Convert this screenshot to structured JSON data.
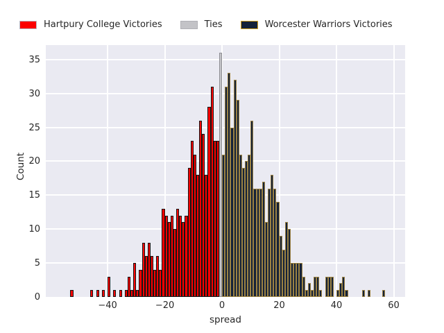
{
  "legend": {
    "items": [
      {
        "label": "Hartpury College Victories",
        "color": "#fb0000",
        "border": "#b9b9c4"
      },
      {
        "label": "Ties",
        "color": "#c3c3c7",
        "border": "#b0b0b6"
      },
      {
        "label": "Worcester Warriors Victories",
        "color": "#152238",
        "border": "#d9a421"
      }
    ]
  },
  "axes": {
    "ylabel": "Count",
    "xlabel": "spread",
    "x_ticks": [
      {
        "value": -40,
        "label": "−40"
      },
      {
        "value": -20,
        "label": "−20"
      },
      {
        "value": 0,
        "label": "0"
      },
      {
        "value": 20,
        "label": "20"
      },
      {
        "value": 40,
        "label": "40"
      },
      {
        "value": 60,
        "label": "60"
      }
    ],
    "y_ticks": [
      {
        "value": 0,
        "label": "0"
      },
      {
        "value": 5,
        "label": "5"
      },
      {
        "value": 10,
        "label": "10"
      },
      {
        "value": 15,
        "label": "15"
      },
      {
        "value": 20,
        "label": "20"
      },
      {
        "value": 25,
        "label": "25"
      },
      {
        "value": 30,
        "label": "30"
      },
      {
        "value": 35,
        "label": "35"
      }
    ]
  },
  "chart_data": {
    "type": "bar",
    "subtype": "histogram",
    "title": "",
    "xlabel": "spread",
    "ylabel": "Count",
    "xlim": [
      -61.6,
      64.0
    ],
    "ylim": [
      0,
      37.13
    ],
    "bin_width": 1,
    "grid": true,
    "legend_position": "top",
    "plot_bg": "#eaeaf2",
    "series": [
      {
        "name": "Hartpury College Victories",
        "color": "#fb0000",
        "edge_color": "#151515",
        "bins_left_edge_and_count": [
          [
            -53,
            1
          ],
          [
            -46,
            1
          ],
          [
            -44,
            1
          ],
          [
            -42,
            1
          ],
          [
            -40,
            3
          ],
          [
            -38,
            1
          ],
          [
            -36,
            1
          ],
          [
            -34,
            1
          ],
          [
            -33,
            3
          ],
          [
            -32,
            1
          ],
          [
            -31,
            5
          ],
          [
            -30,
            1
          ],
          [
            -29,
            4
          ],
          [
            -28,
            8
          ],
          [
            -27,
            6
          ],
          [
            -26,
            8
          ],
          [
            -25,
            6
          ],
          [
            -24,
            4
          ],
          [
            -23,
            6
          ],
          [
            -22,
            4
          ],
          [
            -21,
            13
          ],
          [
            -20,
            12
          ],
          [
            -19,
            11
          ],
          [
            -18,
            12
          ],
          [
            -17,
            10
          ],
          [
            -16,
            13
          ],
          [
            -15,
            12
          ],
          [
            -14,
            11
          ],
          [
            -13,
            12
          ],
          [
            -12,
            19
          ],
          [
            -11,
            23
          ],
          [
            -10,
            21
          ],
          [
            -9,
            18
          ],
          [
            -8,
            26
          ],
          [
            -7,
            24
          ],
          [
            -6,
            18
          ],
          [
            -5,
            28
          ],
          [
            -4,
            31
          ],
          [
            -3,
            23
          ],
          [
            -2,
            23
          ]
        ]
      },
      {
        "name": "Ties",
        "color": "#c3c3c7",
        "edge_color": "#8f8f95",
        "bins_left_edge_and_count": [
          [
            -1,
            36
          ]
        ]
      },
      {
        "name": "Worcester Warriors Victories",
        "color": "#152238",
        "edge_color": "#9c8243",
        "bins_left_edge_and_count": [
          [
            0,
            21
          ],
          [
            1,
            31
          ],
          [
            2,
            33
          ],
          [
            3,
            25
          ],
          [
            4,
            32
          ],
          [
            5,
            29
          ],
          [
            6,
            21
          ],
          [
            7,
            19
          ],
          [
            8,
            20
          ],
          [
            9,
            21
          ],
          [
            10,
            26
          ],
          [
            11,
            16
          ],
          [
            12,
            16
          ],
          [
            13,
            16
          ],
          [
            14,
            17
          ],
          [
            15,
            11
          ],
          [
            16,
            16
          ],
          [
            17,
            18
          ],
          [
            18,
            16
          ],
          [
            19,
            14
          ],
          [
            20,
            9
          ],
          [
            21,
            7
          ],
          [
            22,
            11
          ],
          [
            23,
            10
          ],
          [
            24,
            5
          ],
          [
            25,
            5
          ],
          [
            26,
            5
          ],
          [
            27,
            5
          ],
          [
            28,
            3
          ],
          [
            29,
            1
          ],
          [
            30,
            2
          ],
          [
            31,
            1
          ],
          [
            32,
            3
          ],
          [
            33,
            3
          ],
          [
            34,
            1
          ],
          [
            36,
            3
          ],
          [
            37,
            3
          ],
          [
            38,
            3
          ],
          [
            40,
            1
          ],
          [
            41,
            2
          ],
          [
            42,
            3
          ],
          [
            43,
            1
          ],
          [
            49,
            1
          ],
          [
            51,
            1
          ],
          [
            56,
            1
          ]
        ]
      }
    ]
  }
}
